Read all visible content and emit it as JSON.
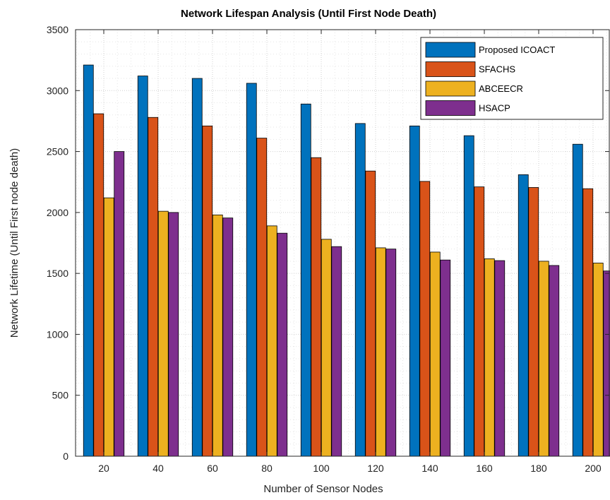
{
  "chart_data": {
    "type": "bar",
    "title": "Network Lifespan Analysis (Until First Node Death)",
    "xlabel": "Number of Sensor Nodes",
    "ylabel": "Network Lifetime (Until First node death)",
    "categories": [
      "20",
      "40",
      "60",
      "80",
      "100",
      "120",
      "140",
      "160",
      "180",
      "200"
    ],
    "ylim": [
      0,
      3500
    ],
    "yticks": [
      "0",
      "500",
      "1000",
      "1500",
      "2000",
      "2500",
      "3000",
      "3500"
    ],
    "grid": true,
    "legend_position": "top-right",
    "series": [
      {
        "name": "Proposed ICOACT",
        "color": "#0072BD",
        "values": [
          3210,
          3120,
          3100,
          3060,
          2890,
          2730,
          2710,
          2630,
          2310,
          2560
        ]
      },
      {
        "name": "SFACHS",
        "color": "#D95319",
        "values": [
          2810,
          2780,
          2710,
          2610,
          2450,
          2340,
          2255,
          2210,
          2205,
          2195
        ]
      },
      {
        "name": "ABCEECR",
        "color": "#EDB120",
        "values": [
          2120,
          2010,
          1980,
          1890,
          1780,
          1710,
          1675,
          1620,
          1600,
          1585
        ]
      },
      {
        "name": "HSACP",
        "color": "#7E2F8E",
        "values": [
          2500,
          2000,
          1955,
          1830,
          1720,
          1700,
          1610,
          1605,
          1565,
          1520
        ]
      }
    ]
  }
}
